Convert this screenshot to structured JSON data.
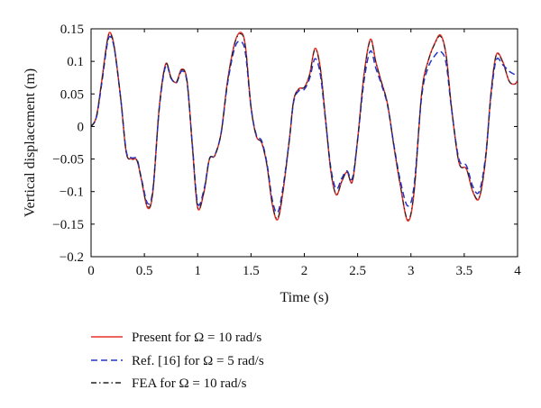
{
  "chart_data": {
    "type": "line",
    "title": "",
    "xlabel": "Time (s)",
    "ylabel": "Vertical displacement (m)",
    "xlim": [
      0,
      4
    ],
    "ylim": [
      -0.2,
      0.15
    ],
    "xticks": [
      0,
      0.5,
      1,
      1.5,
      2,
      2.5,
      3,
      3.5,
      4
    ],
    "xtick_labels": [
      "0",
      "0.5",
      "1",
      "1.5",
      "2",
      "2.5",
      "3",
      "3.5",
      "4"
    ],
    "yticks": [
      -0.2,
      -0.15,
      -0.1,
      -0.05,
      0,
      0.05,
      0.1,
      0.15
    ],
    "ytick_labels": [
      "−0.2",
      "−0.15",
      "−0.1",
      "−0.05",
      "0",
      "0.05",
      "0.1",
      "0.15"
    ],
    "grid": false,
    "legend_position": "below-left",
    "series": [
      {
        "name": "Present for Ω = 10 rad/s",
        "color": "#e8322a",
        "style": "solid",
        "x": [
          0,
          0.05,
          0.1,
          0.15,
          0.18,
          0.22,
          0.28,
          0.33,
          0.38,
          0.43,
          0.47,
          0.53,
          0.58,
          0.64,
          0.7,
          0.75,
          0.8,
          0.85,
          0.9,
          0.95,
          1.0,
          1.06,
          1.11,
          1.16,
          1.22,
          1.28,
          1.35,
          1.41,
          1.45,
          1.5,
          1.55,
          1.6,
          1.65,
          1.7,
          1.75,
          1.8,
          1.86,
          1.9,
          1.95,
          2.0,
          2.05,
          2.1,
          2.15,
          2.2,
          2.25,
          2.3,
          2.35,
          2.4,
          2.45,
          2.5,
          2.56,
          2.62,
          2.67,
          2.72,
          2.78,
          2.84,
          2.9,
          2.97,
          3.03,
          3.1,
          3.16,
          3.23,
          3.28,
          3.33,
          3.38,
          3.45,
          3.52,
          3.58,
          3.64,
          3.7,
          3.75,
          3.8,
          3.86,
          3.92,
          3.97,
          4.0
        ],
        "y": [
          0,
          0.015,
          0.07,
          0.13,
          0.144,
          0.12,
          0.04,
          -0.04,
          -0.05,
          -0.052,
          -0.08,
          -0.125,
          -0.1,
          0.03,
          0.096,
          0.075,
          0.068,
          0.088,
          0.07,
          -0.03,
          -0.125,
          -0.1,
          -0.05,
          -0.045,
          -0.01,
          0.07,
          0.13,
          0.144,
          0.12,
          0.03,
          -0.015,
          -0.025,
          -0.06,
          -0.12,
          -0.143,
          -0.1,
          -0.02,
          0.04,
          0.058,
          0.06,
          0.08,
          0.12,
          0.09,
          0.01,
          -0.07,
          -0.105,
          -0.085,
          -0.07,
          -0.085,
          -0.02,
          0.08,
          0.134,
          0.1,
          0.07,
          0.035,
          -0.03,
          -0.09,
          -0.145,
          -0.1,
          0.05,
          0.1,
          0.13,
          0.14,
          0.11,
          0.03,
          -0.055,
          -0.065,
          -0.1,
          -0.11,
          -0.05,
          0.05,
          0.11,
          0.1,
          0.07,
          0.065,
          0.07
        ]
      },
      {
        "name": "Ref. [16] for Ω = 5 rad/s",
        "color": "#2535c8",
        "style": "dashed",
        "x": [
          0,
          0.05,
          0.1,
          0.15,
          0.18,
          0.22,
          0.28,
          0.33,
          0.38,
          0.43,
          0.47,
          0.53,
          0.58,
          0.64,
          0.7,
          0.75,
          0.8,
          0.85,
          0.9,
          0.95,
          1.0,
          1.06,
          1.11,
          1.16,
          1.22,
          1.28,
          1.35,
          1.41,
          1.45,
          1.5,
          1.55,
          1.6,
          1.65,
          1.7,
          1.75,
          1.8,
          1.86,
          1.9,
          1.95,
          2.0,
          2.05,
          2.1,
          2.15,
          2.2,
          2.25,
          2.3,
          2.35,
          2.4,
          2.45,
          2.5,
          2.56,
          2.62,
          2.67,
          2.72,
          2.78,
          2.84,
          2.9,
          2.97,
          3.03,
          3.1,
          3.16,
          3.23,
          3.28,
          3.33,
          3.38,
          3.45,
          3.52,
          3.58,
          3.64,
          3.7,
          3.75,
          3.8,
          3.86,
          3.92,
          3.97,
          4.0
        ],
        "y": [
          0,
          0.014,
          0.066,
          0.125,
          0.138,
          0.118,
          0.04,
          -0.038,
          -0.048,
          -0.05,
          -0.078,
          -0.118,
          -0.096,
          0.028,
          0.093,
          0.074,
          0.067,
          0.085,
          0.068,
          -0.028,
          -0.118,
          -0.096,
          -0.05,
          -0.044,
          -0.01,
          0.066,
          0.122,
          0.13,
          0.11,
          0.03,
          -0.013,
          -0.022,
          -0.057,
          -0.113,
          -0.132,
          -0.094,
          -0.02,
          0.038,
          0.055,
          0.057,
          0.074,
          0.104,
          0.08,
          0.008,
          -0.065,
          -0.096,
          -0.08,
          -0.068,
          -0.08,
          -0.02,
          0.07,
          0.116,
          0.09,
          0.066,
          0.033,
          -0.028,
          -0.083,
          -0.122,
          -0.09,
          0.045,
          0.09,
          0.11,
          0.115,
          0.097,
          0.028,
          -0.05,
          -0.06,
          -0.092,
          -0.1,
          -0.046,
          0.045,
          0.102,
          0.095,
          0.085,
          0.08,
          0.078
        ]
      },
      {
        "name": "FEA for Ω = 10 rad/s",
        "color": "#222222",
        "style": "dashdot",
        "x": [
          0,
          0.05,
          0.1,
          0.15,
          0.18,
          0.22,
          0.28,
          0.33,
          0.38,
          0.43,
          0.47,
          0.53,
          0.58,
          0.64,
          0.7,
          0.75,
          0.8,
          0.85,
          0.9,
          0.95,
          1.0,
          1.06,
          1.11,
          1.16,
          1.22,
          1.28,
          1.35,
          1.41,
          1.45,
          1.5,
          1.55,
          1.6,
          1.65,
          1.7,
          1.75,
          1.8,
          1.86,
          1.9,
          1.95,
          2.0,
          2.05,
          2.1,
          2.15,
          2.2,
          2.25,
          2.3,
          2.35,
          2.4,
          2.45,
          2.5,
          2.56,
          2.62,
          2.67,
          2.72,
          2.78,
          2.84,
          2.9,
          2.97,
          3.03,
          3.1,
          3.16,
          3.23,
          3.28,
          3.33,
          3.38,
          3.45,
          3.52,
          3.58,
          3.64,
          3.7,
          3.75,
          3.8,
          3.86,
          3.92,
          3.97,
          4.0
        ],
        "y": [
          0,
          0.015,
          0.069,
          0.129,
          0.142,
          0.119,
          0.04,
          -0.04,
          -0.05,
          -0.052,
          -0.08,
          -0.123,
          -0.099,
          0.03,
          0.095,
          0.075,
          0.068,
          0.087,
          0.07,
          -0.03,
          -0.124,
          -0.099,
          -0.05,
          -0.045,
          -0.01,
          0.069,
          0.129,
          0.142,
          0.119,
          0.03,
          -0.015,
          -0.025,
          -0.06,
          -0.119,
          -0.141,
          -0.099,
          -0.02,
          0.04,
          0.058,
          0.06,
          0.079,
          0.118,
          0.089,
          0.01,
          -0.07,
          -0.104,
          -0.085,
          -0.07,
          -0.085,
          -0.02,
          0.079,
          0.132,
          0.099,
          0.07,
          0.035,
          -0.03,
          -0.09,
          -0.143,
          -0.099,
          0.049,
          0.099,
          0.129,
          0.138,
          0.109,
          0.03,
          -0.055,
          -0.065,
          -0.099,
          -0.109,
          -0.05,
          0.05,
          0.109,
          0.099,
          0.07,
          0.065,
          0.07
        ]
      }
    ]
  }
}
